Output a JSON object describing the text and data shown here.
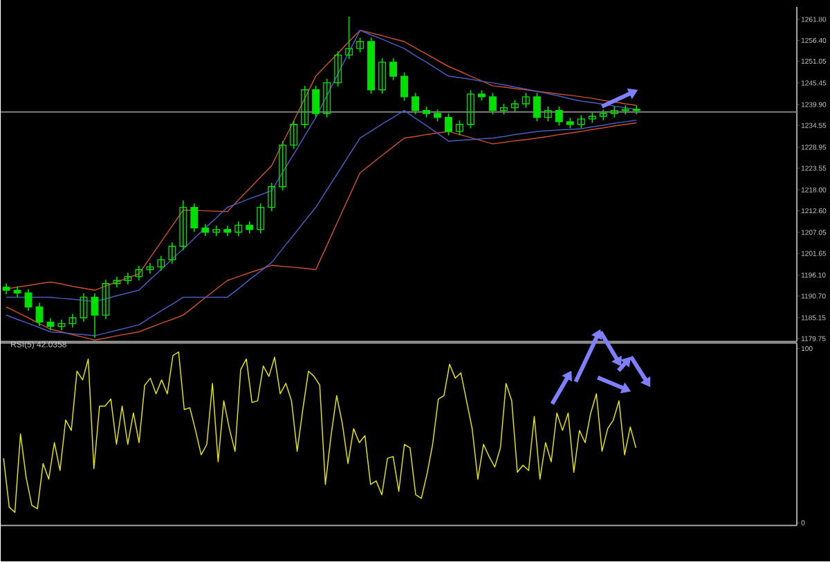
{
  "chart_data": [
    {
      "type": "candlestick",
      "color": "#00e000",
      "categories": [
        null,
        null,
        null,
        null,
        null,
        null,
        null,
        null,
        null,
        null,
        null,
        null,
        null,
        null,
        null,
        null,
        null,
        null,
        null,
        null,
        null,
        null,
        null,
        null,
        null,
        null,
        null,
        null,
        null,
        null,
        null,
        null,
        null,
        null,
        null,
        null,
        null,
        null,
        null,
        null,
        null,
        null,
        null,
        null,
        null,
        null,
        null,
        null,
        null,
        null,
        null,
        null,
        null,
        null,
        null,
        null,
        null,
        null,
        null,
        null,
        null,
        null,
        null,
        null,
        null,
        null,
        null,
        null,
        null,
        null,
        null,
        null
      ],
      "ohlc": [
        [
          1193.0,
          1194.0,
          1191.2,
          1192.2
        ],
        [
          1192.2,
          1193.2,
          1190.5,
          1191.5
        ],
        [
          1191.5,
          1192.5,
          1186.9,
          1187.9
        ],
        [
          1187.9,
          1188.9,
          1183.0,
          1184.0
        ],
        [
          1184.0,
          1185.0,
          1181.9,
          1182.9
        ],
        [
          1182.9,
          1184.6,
          1181.9,
          1183.6
        ],
        [
          1183.6,
          1186.1,
          1182.6,
          1185.1
        ],
        [
          1185.1,
          1191.4,
          1184.1,
          1190.4
        ],
        [
          1190.4,
          1191.4,
          1180.0,
          1185.8
        ],
        [
          1185.8,
          1194.9,
          1184.8,
          1193.9
        ],
        [
          1193.9,
          1195.7,
          1192.9,
          1194.7
        ],
        [
          1194.7,
          1196.7,
          1193.7,
          1195.7
        ],
        [
          1195.7,
          1198.5,
          1194.7,
          1197.5
        ],
        [
          1197.5,
          1199.2,
          1196.5,
          1198.2
        ],
        [
          1198.2,
          1201.0,
          1197.2,
          1200.0
        ],
        [
          1200.0,
          1204.5,
          1199.0,
          1203.5
        ],
        [
          1203.5,
          1215.3,
          1202.5,
          1213.5
        ],
        [
          1213.5,
          1214.5,
          1207.2,
          1208.2
        ],
        [
          1208.2,
          1209.2,
          1206.1,
          1207.1
        ],
        [
          1207.1,
          1208.8,
          1206.1,
          1207.8
        ],
        [
          1207.8,
          1208.8,
          1206.1,
          1207.1
        ],
        [
          1207.1,
          1209.9,
          1206.1,
          1208.9
        ],
        [
          1208.9,
          1209.9,
          1206.8,
          1207.8
        ],
        [
          1207.8,
          1214.5,
          1206.8,
          1213.5
        ],
        [
          1213.5,
          1219.8,
          1212.5,
          1218.8
        ],
        [
          1218.8,
          1230.5,
          1217.8,
          1229.5
        ],
        [
          1229.5,
          1235.8,
          1228.5,
          1234.8
        ],
        [
          1234.8,
          1244.7,
          1233.8,
          1243.7
        ],
        [
          1243.7,
          1244.7,
          1236.6,
          1237.6
        ],
        [
          1237.6,
          1246.5,
          1236.6,
          1245.5
        ],
        [
          1245.5,
          1253.6,
          1244.5,
          1252.6
        ],
        [
          1252.6,
          1262.5,
          1251.6,
          1254.3
        ],
        [
          1254.3,
          1257.1,
          1253.3,
          1256.1
        ],
        [
          1256.1,
          1257.1,
          1242.7,
          1243.7
        ],
        [
          1243.7,
          1251.8,
          1242.7,
          1250.8
        ],
        [
          1250.8,
          1251.8,
          1246.2,
          1247.2
        ],
        [
          1247.2,
          1248.2,
          1240.9,
          1241.9
        ],
        [
          1241.9,
          1242.9,
          1237.4,
          1238.4
        ],
        [
          1238.4,
          1239.4,
          1236.6,
          1237.6
        ],
        [
          1237.6,
          1238.6,
          1235.6,
          1236.6
        ],
        [
          1236.6,
          1237.6,
          1232.0,
          1233.0
        ],
        [
          1233.0,
          1235.8,
          1232.0,
          1234.8
        ],
        [
          1234.8,
          1243.6,
          1233.8,
          1242.6
        ],
        [
          1242.6,
          1243.6,
          1240.9,
          1241.9
        ],
        [
          1241.9,
          1242.9,
          1237.4,
          1238.4
        ],
        [
          1238.4,
          1240.1,
          1237.4,
          1239.1
        ],
        [
          1239.1,
          1241.1,
          1238.1,
          1240.1
        ],
        [
          1240.1,
          1242.9,
          1239.1,
          1241.9
        ],
        [
          1241.9,
          1242.9,
          1235.6,
          1236.6
        ],
        [
          1236.6,
          1239.4,
          1235.6,
          1238.4
        ],
        [
          1238.4,
          1239.4,
          1234.5,
          1235.5
        ],
        [
          1235.5,
          1236.5,
          1233.8,
          1234.8
        ],
        [
          1234.8,
          1237.2,
          1233.8,
          1236.2
        ],
        [
          1236.2,
          1237.9,
          1235.2,
          1236.9
        ],
        [
          1236.9,
          1238.6,
          1235.9,
          1237.6
        ],
        [
          1237.6,
          1239.4,
          1236.6,
          1238.4
        ],
        [
          1238.4,
          1239.7,
          1237.4,
          1238.7
        ],
        [
          1238.7,
          1239.7,
          1237.4,
          1238.4
        ],
        null,
        null,
        null,
        null,
        null,
        null,
        null,
        null,
        null,
        null,
        null,
        null,
        null,
        null
      ],
      "series": [
        {
          "type": "line",
          "color": "#c8502d",
          "values": [
            1192.5,
            1193.0,
            1193.4,
            1193.9,
            1194.3,
            1193.8,
            1193.2,
            1192.7,
            1192.2,
            1193.3,
            1194.3,
            1195.4,
            1196.4,
            1200.5,
            1204.6,
            1208.7,
            1212.8,
            1212.7,
            1212.6,
            1212.5,
            1212.4,
            1215.4,
            1218.3,
            1221.3,
            1224.2,
            1230.0,
            1235.7,
            1241.5,
            1247.2,
            1250.2,
            1253.1,
            1256.1,
            1259.0,
            1258.3,
            1257.6,
            1256.8,
            1256.1,
            1254.5,
            1252.9,
            1251.3,
            1249.7,
            1248.5,
            1247.2,
            1246.0,
            1244.7,
            1244.4,
            1244.0,
            1243.7,
            1243.3,
            1243.0,
            1242.6,
            1242.3,
            1241.9,
            1241.5,
            1241.0,
            1240.6,
            1240.1,
            1239.7,
            null,
            null,
            null,
            null,
            null,
            null,
            null,
            null,
            null,
            null,
            null,
            null,
            null,
            null
          ]
        },
        {
          "type": "line",
          "color": "#c8502d",
          "values": [
            1187.9,
            1186.5,
            1185.1,
            1183.6,
            1182.2,
            1181.5,
            1180.8,
            1180.1,
            1179.4,
            1179.9,
            1180.5,
            1181.0,
            1181.5,
            1182.6,
            1183.7,
            1184.7,
            1185.8,
            1188.0,
            1190.3,
            1192.5,
            1194.7,
            1195.7,
            1196.7,
            1197.6,
            1198.6,
            1198.3,
            1198.1,
            1197.8,
            1197.5,
            1203.7,
            1210.0,
            1216.2,
            1222.4,
            1224.6,
            1226.9,
            1229.1,
            1231.3,
            1231.7,
            1232.2,
            1232.6,
            1233.0,
            1232.2,
            1231.4,
            1230.6,
            1229.8,
            1230.2,
            1230.6,
            1230.9,
            1231.3,
            1231.7,
            1232.2,
            1232.6,
            1233.0,
            1233.5,
            1233.9,
            1234.4,
            1234.8,
            1235.2,
            null,
            null,
            null,
            null,
            null,
            null,
            null,
            null,
            null,
            null,
            null,
            null,
            null,
            null
          ]
        },
        {
          "type": "line",
          "color": "#4a5cc0",
          "values": [
            1190.4,
            1190.4,
            1190.4,
            1190.4,
            1190.4,
            1190.1,
            1189.9,
            1189.6,
            1189.3,
            1190.0,
            1190.8,
            1191.5,
            1192.2,
            1194.9,
            1197.5,
            1200.2,
            1202.8,
            1205.5,
            1208.2,
            1210.8,
            1213.5,
            1214.6,
            1215.7,
            1216.7,
            1217.8,
            1222.5,
            1227.2,
            1231.9,
            1236.6,
            1242.2,
            1247.8,
            1253.4,
            1259.0,
            1257.8,
            1256.7,
            1255.5,
            1254.3,
            1252.5,
            1250.8,
            1249.0,
            1247.2,
            1246.8,
            1246.4,
            1245.9,
            1245.5,
            1245.0,
            1244.4,
            1243.9,
            1243.3,
            1242.7,
            1242.1,
            1241.4,
            1240.8,
            1240.4,
            1240.0,
            1239.5,
            1239.1,
            1238.7,
            null,
            null,
            null,
            null,
            null,
            null,
            null,
            null,
            null,
            null,
            null,
            null,
            null,
            null
          ]
        },
        {
          "type": "line",
          "color": "#4a5cc0",
          "values": [
            1185.8,
            1184.7,
            1183.7,
            1182.6,
            1181.5,
            1181.3,
            1181.0,
            1180.8,
            1180.5,
            1181.2,
            1181.9,
            1182.6,
            1183.3,
            1185.1,
            1186.9,
            1188.6,
            1190.4,
            1190.4,
            1190.4,
            1190.4,
            1190.4,
            1192.6,
            1194.9,
            1197.1,
            1199.3,
            1202.9,
            1206.4,
            1210.0,
            1213.5,
            1218.0,
            1222.4,
            1226.9,
            1231.3,
            1233.1,
            1234.9,
            1236.6,
            1238.4,
            1236.4,
            1234.5,
            1232.5,
            1230.5,
            1230.7,
            1230.9,
            1231.1,
            1231.3,
            1231.7,
            1232.2,
            1232.6,
            1233.0,
            1233.2,
            1233.4,
            1233.5,
            1233.7,
            1234.2,
            1234.6,
            1235.1,
            1235.5,
            1235.9,
            null,
            null,
            null,
            null,
            null,
            null,
            null,
            null,
            null,
            null,
            null,
            null,
            null,
            null
          ]
        }
      ],
      "ylim": [
        1179.0,
        1265.0
      ],
      "yticks": [
        {
          "value": 1261.8,
          "label": "1261.80"
        },
        {
          "value": 1256.4,
          "label": "1256.40"
        },
        {
          "value": 1251.05,
          "label": "1251.05"
        },
        {
          "value": 1245.45,
          "label": "1245.45"
        },
        {
          "value": 1239.9,
          "label": "1239.90"
        },
        {
          "value": 1234.55,
          "label": "1234.55"
        },
        {
          "value": 1228.95,
          "label": "1228.95"
        },
        {
          "value": 1223.55,
          "label": "1223.55"
        },
        {
          "value": 1218.0,
          "label": "1218.00"
        },
        {
          "value": 1212.6,
          "label": "1212.60"
        },
        {
          "value": 1207.05,
          "label": "1207.05"
        },
        {
          "value": 1201.65,
          "label": "1201.65"
        },
        {
          "value": 1196.1,
          "label": "1196.10"
        },
        {
          "value": 1190.7,
          "label": "1190.70"
        },
        {
          "value": 1185.15,
          "label": "1185.15"
        },
        {
          "value": 1179.75,
          "label": "1179.75"
        }
      ],
      "tick_labels": "y",
      "ref_lines": [
        {
          "axis": "y",
          "value": 1238.0,
          "color": "#808080"
        }
      ]
    },
    {
      "type": "line",
      "title": "RSI(5) 42.0358",
      "categories": [
        null,
        null,
        null,
        null,
        null,
        null,
        null,
        null,
        null,
        null,
        null,
        null,
        null,
        null,
        null,
        null,
        null,
        null,
        null,
        null,
        null,
        null,
        null,
        null,
        null,
        null,
        null,
        null,
        null,
        null,
        null,
        null,
        null,
        null,
        null,
        null,
        null,
        null,
        null,
        null,
        null,
        null,
        null,
        null,
        null,
        null,
        null,
        null,
        null,
        null,
        null,
        null,
        null,
        null,
        null,
        null,
        null,
        null,
        null,
        null,
        null,
        null,
        null,
        null,
        null,
        null,
        null,
        null,
        null,
        null,
        null,
        null,
        null,
        null,
        null,
        null,
        null,
        null,
        null,
        null,
        null,
        null,
        null,
        null,
        null,
        null,
        null,
        null,
        null,
        null,
        null,
        null,
        null,
        null,
        null,
        null,
        null,
        null,
        null,
        null,
        null,
        null,
        null,
        null,
        null,
        null,
        null,
        null,
        null,
        null,
        null,
        null,
        null,
        null,
        null,
        null,
        null,
        null,
        null,
        null,
        null,
        null,
        null,
        null,
        null,
        null,
        null,
        null,
        null,
        null,
        null,
        null,
        null,
        null,
        null,
        null,
        null,
        null,
        null,
        null,
        null
      ],
      "series": [
        {
          "color": "#e6e600",
          "values": [
            37,
            9,
            6,
            51,
            26,
            10,
            8,
            34,
            25,
            46,
            30,
            59,
            53,
            87,
            82,
            94,
            31,
            67,
            67,
            71,
            45,
            67,
            45,
            63,
            46,
            79,
            83,
            74,
            82,
            74,
            96,
            98,
            65,
            66,
            53,
            39,
            45,
            80,
            35,
            70,
            54,
            41,
            88,
            94,
            69,
            70,
            90,
            84,
            95,
            74,
            80,
            70,
            41,
            65,
            87,
            84,
            79,
            22,
            50,
            73,
            57,
            34,
            54,
            46,
            50,
            22,
            24,
            16,
            37,
            38,
            18,
            45,
            43,
            16,
            14,
            28,
            45,
            71,
            73,
            91,
            83,
            86,
            70,
            54,
            25,
            45,
            38,
            32,
            43,
            80,
            70,
            29,
            33,
            30,
            61,
            25,
            46,
            35,
            63,
            53,
            63,
            29,
            53,
            46,
            63,
            74,
            41,
            54,
            59,
            70,
            39,
            55,
            43,
            null,
            null,
            null,
            null,
            null,
            null,
            null,
            null,
            null,
            null,
            null,
            null,
            null,
            null,
            null,
            null,
            null,
            null,
            null,
            null,
            null,
            null,
            null,
            null,
            null,
            null,
            null,
            null
          ]
        }
      ],
      "ylim": [
        -1.6,
        103.2
      ],
      "yticks": [
        0,
        100
      ],
      "tick_labels": "y"
    }
  ]
}
